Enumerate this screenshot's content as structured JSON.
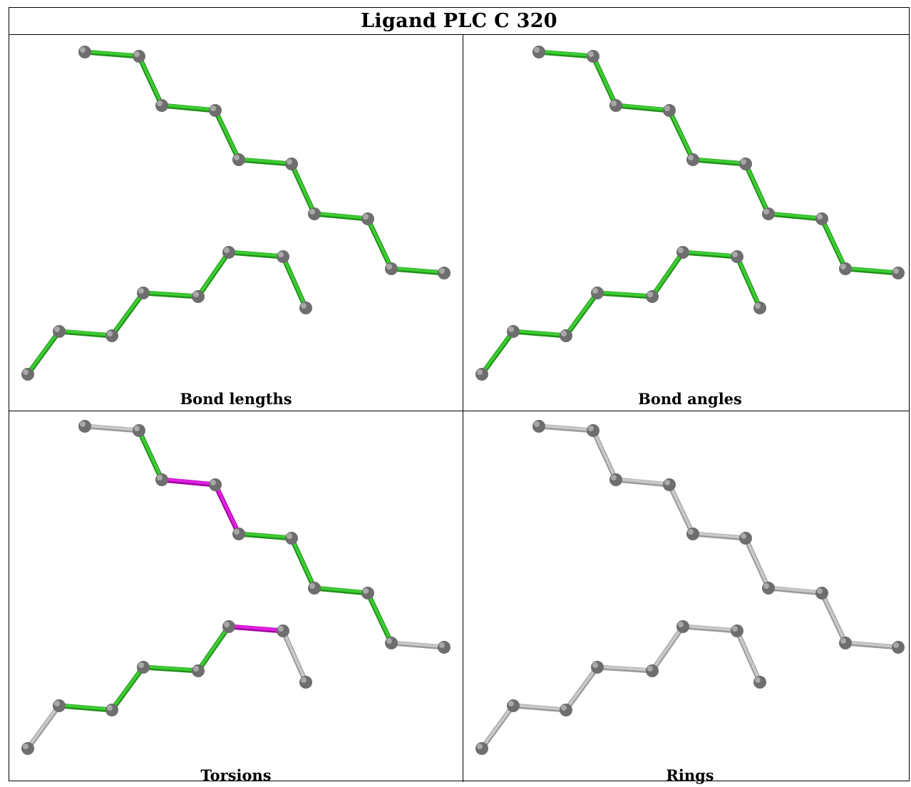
{
  "title": "Ligand PLC C 320",
  "colors": {
    "ok": "#3ccc32",
    "outlier": "#e020e0",
    "none": "#c8c8c8",
    "atom": "#808080"
  },
  "panels": [
    {
      "caption": "Bond lengths",
      "bond_colors": [
        "ok",
        "ok",
        "ok",
        "ok",
        "ok",
        "ok",
        "ok",
        "ok",
        "ok",
        "ok",
        "ok",
        "ok",
        "ok",
        "ok",
        "ok",
        "ok",
        "ok",
        "ok",
        "ok"
      ]
    },
    {
      "caption": "Bond angles",
      "bond_colors": [
        "ok",
        "ok",
        "ok",
        "ok",
        "ok",
        "ok",
        "ok",
        "ok",
        "ok",
        "ok",
        "ok",
        "ok",
        "ok",
        "ok",
        "ok",
        "ok",
        "ok",
        "ok",
        "ok"
      ]
    },
    {
      "caption": "Torsions",
      "bond_colors": [
        "none",
        "ok",
        "outlier",
        "outlier",
        "ok",
        "ok",
        "ok",
        "ok",
        "ok",
        "none",
        "none",
        "ok",
        "ok",
        "ok",
        "ok",
        "ok",
        "ok",
        "outlier",
        "none"
      ]
    },
    {
      "caption": "Rings",
      "bond_colors": [
        "none",
        "none",
        "none",
        "none",
        "none",
        "none",
        "none",
        "none",
        "none",
        "none",
        "none",
        "none",
        "none",
        "none",
        "none",
        "none",
        "none",
        "none",
        "none"
      ]
    }
  ]
}
